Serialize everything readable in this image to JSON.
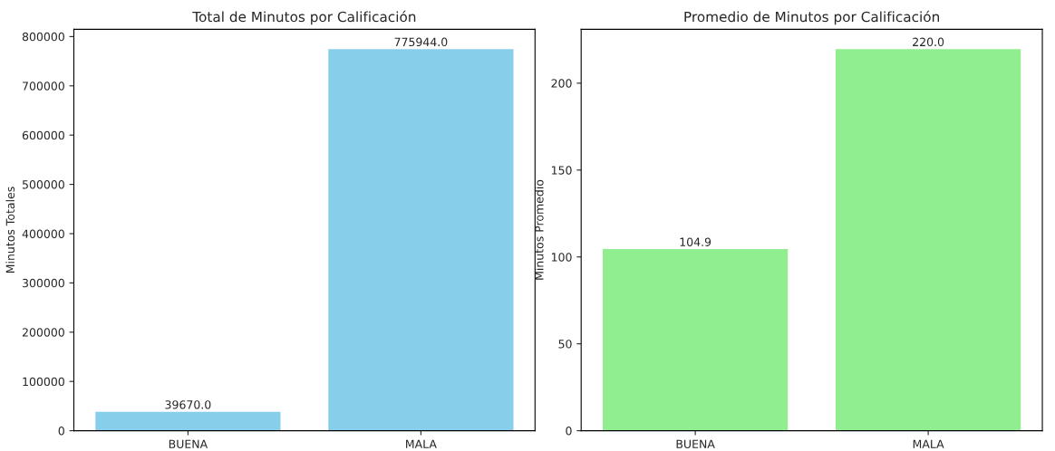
{
  "chart_data": [
    {
      "type": "bar",
      "title": "Total de Minutos por Calificación",
      "ylabel": "Minutos Totales",
      "categories": [
        "BUENA",
        "MALA"
      ],
      "values": [
        39670.0,
        775944.0
      ],
      "value_labels": [
        "39670.0",
        "775944.0"
      ],
      "color": "#87ceeb",
      "ylim": [
        0,
        814741
      ],
      "yticks": [
        0,
        100000,
        200000,
        300000,
        400000,
        500000,
        600000,
        700000,
        800000
      ],
      "grid": false,
      "legend": false
    },
    {
      "type": "bar",
      "title": "Promedio de Minutos por Calificación",
      "ylabel": "Minutos Promedio",
      "categories": [
        "BUENA",
        "MALA"
      ],
      "values": [
        104.9,
        220.0
      ],
      "value_labels": [
        "104.9",
        "220.0"
      ],
      "color": "#90ee90",
      "ylim": [
        0,
        231
      ],
      "yticks": [
        0,
        50,
        100,
        150,
        200
      ],
      "grid": false,
      "legend": false
    }
  ]
}
